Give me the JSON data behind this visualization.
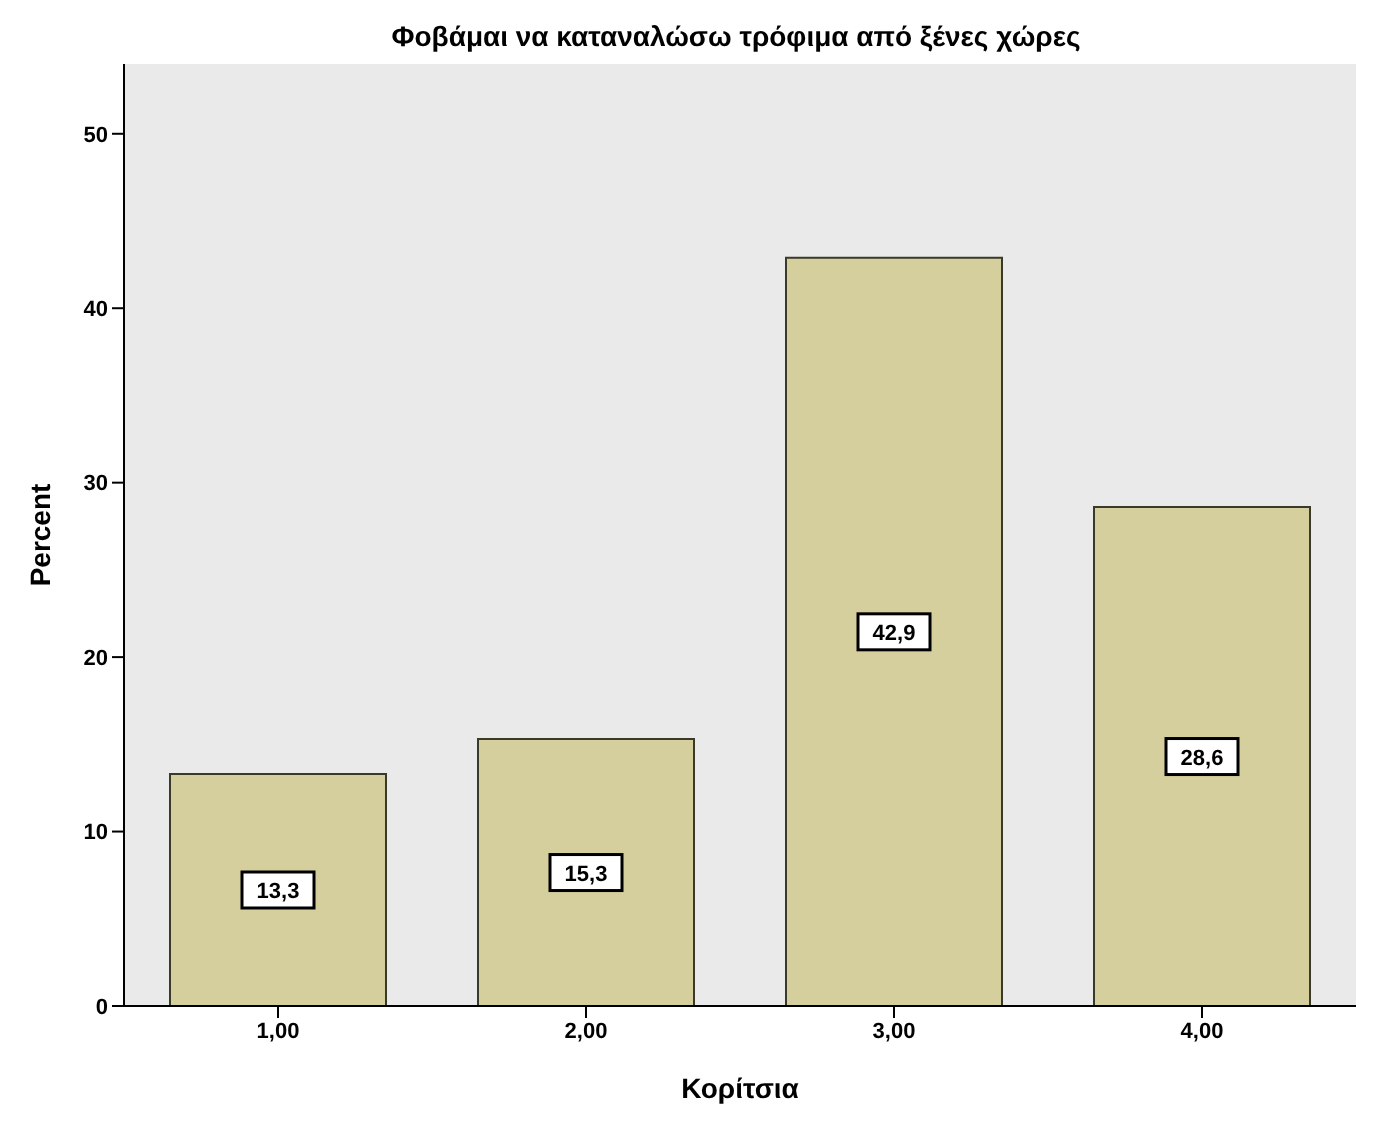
{
  "chart_data": {
    "type": "bar",
    "title": "Φοβάμαι να καταναλώσω τρόφιμα από ξένες χώρες",
    "xlabel": "Κορίτσια",
    "ylabel": "Percent",
    "categories": [
      "1,00",
      "2,00",
      "3,00",
      "4,00"
    ],
    "values": [
      13.3,
      15.3,
      42.9,
      28.6
    ],
    "value_labels": [
      "13,3",
      "15,3",
      "42,9",
      "28,6"
    ],
    "color": "#d5cf9d",
    "ylim": [
      0,
      54
    ],
    "yticks": [
      0,
      10,
      20,
      30,
      40,
      50
    ],
    "grid": false
  }
}
